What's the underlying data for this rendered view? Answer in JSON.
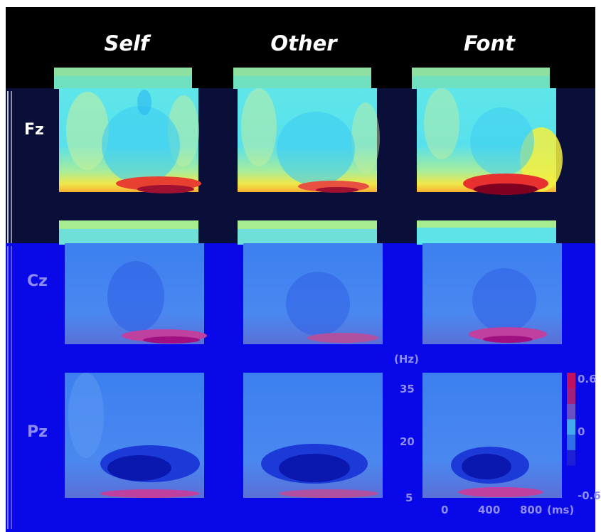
{
  "figure": {
    "columns": [
      "Self",
      "Other",
      "Font"
    ],
    "rows": [
      "Fz",
      "Cz",
      "Pz"
    ],
    "y_axis": {
      "unit": "(Hz)",
      "ticks": [
        "35",
        "20",
        "5"
      ]
    },
    "x_axis": {
      "ticks": [
        "0",
        "400",
        "800"
      ],
      "unit": "(ms)"
    },
    "colorbar": {
      "ticks": [
        "0.6",
        "0",
        "-0.6"
      ],
      "colors": [
        "#1f1fd8",
        "#2f6fe8",
        "#44a8ee",
        "#6a4fc0",
        "#a0207c",
        "#c01060"
      ]
    }
  },
  "colors": {
    "header_band": "#000000",
    "fz_band": "#0a0f3a",
    "lower_band": "#0808e8",
    "label_on_dark": "#ffffff",
    "label_on_blue": "#8e8cf2"
  }
}
